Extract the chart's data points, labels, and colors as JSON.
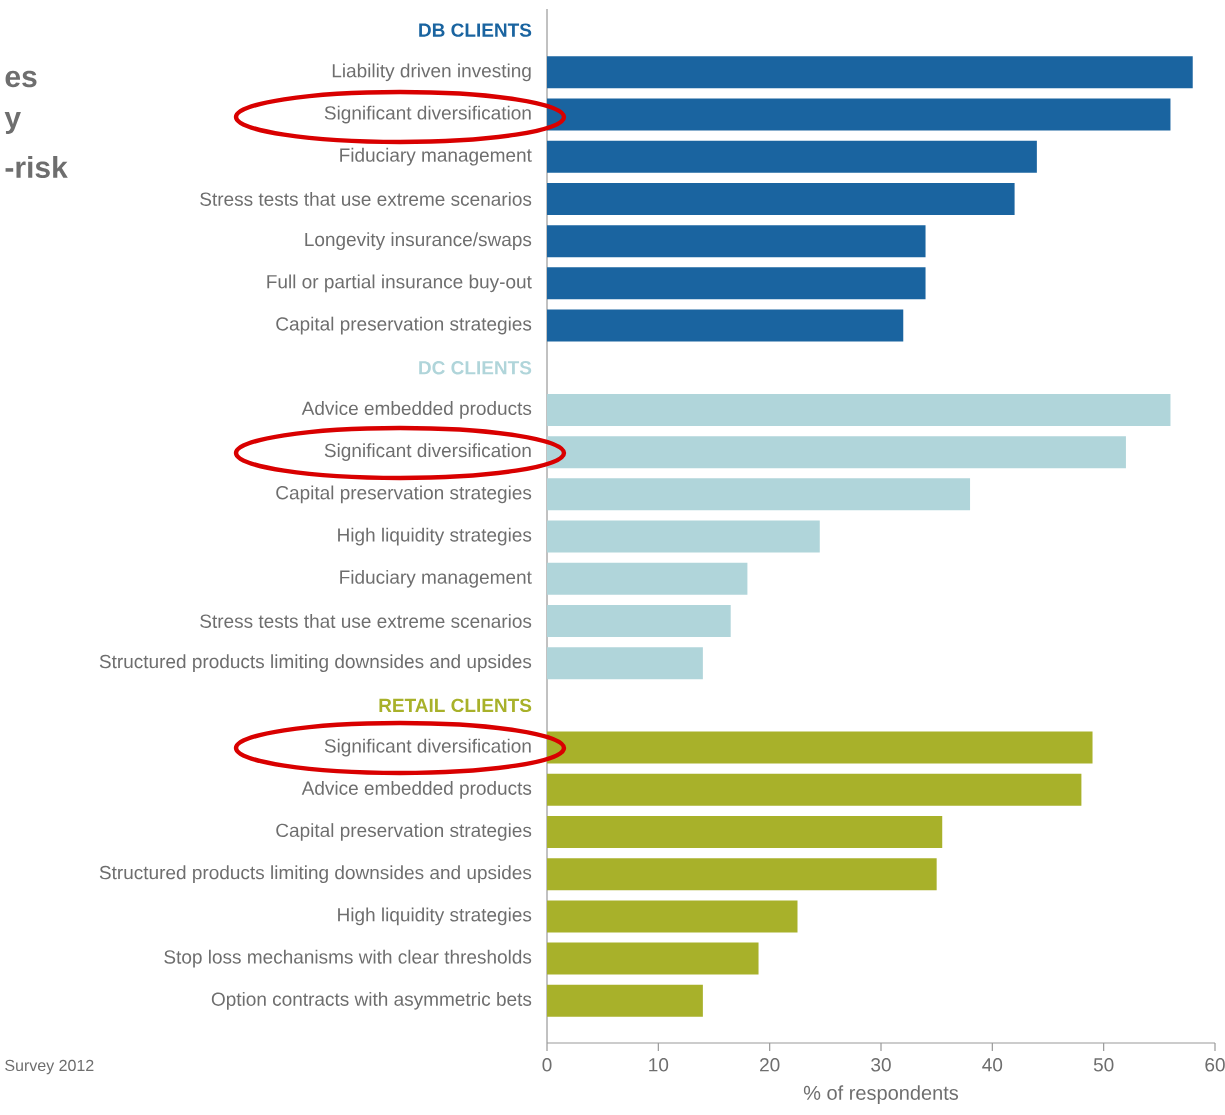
{
  "chart_data": {
    "type": "bar",
    "orientation": "horizontal",
    "xlabel": "% of respondents",
    "categories": [
      "DB CLIENTS",
      "Liability driven investing",
      "Significant diversification",
      "Fiduciary management",
      "Stress tests that use extreme scenarios",
      "Longevity insurance/swaps",
      "Full or partial insurance buy-out",
      "Capital preservation strategies",
      "DC CLIENTS",
      "Advice embedded products",
      "Significant diversification",
      "Capital preservation strategies",
      "High liquidity strategies",
      "Fiduciary management",
      "Stress tests that use extreme scenarios",
      "Structured products limiting downsides and upsides",
      "RETAIL CLIENTS",
      "Significant diversification",
      "Advice embedded products",
      "Capital preservation strategies",
      "Structured products limiting downsides and upsides",
      "High liquidity strategies",
      "Stop loss mechanisms with clear thresholds",
      "Option contracts with asymmetric bets"
    ],
    "series": [
      {
        "color": "#1a64a0",
        "values": [
          null,
          58,
          56,
          44,
          42,
          34,
          34,
          32,
          null,
          null,
          null,
          null,
          null,
          null,
          null,
          null,
          null,
          null,
          null,
          null,
          null,
          null,
          null,
          null
        ]
      },
      {
        "color": "#b0d5da",
        "values": [
          null,
          null,
          null,
          null,
          null,
          null,
          null,
          null,
          null,
          56,
          52,
          38,
          24.5,
          18,
          16.5,
          14,
          null,
          null,
          null,
          null,
          null,
          null,
          null,
          null
        ]
      },
      {
        "color": "#a8b12a",
        "values": [
          null,
          null,
          null,
          null,
          null,
          null,
          null,
          null,
          null,
          null,
          null,
          null,
          null,
          null,
          null,
          null,
          null,
          49,
          48,
          35.5,
          35,
          22.5,
          19,
          14
        ]
      }
    ],
    "xlim": [
      0,
      60
    ],
    "xticks": [
      0,
      10,
      20,
      30,
      40,
      50,
      60
    ],
    "grid": false,
    "annotations": [
      "es",
      "y",
      "-risk",
      "Survey 2012"
    ]
  }
}
